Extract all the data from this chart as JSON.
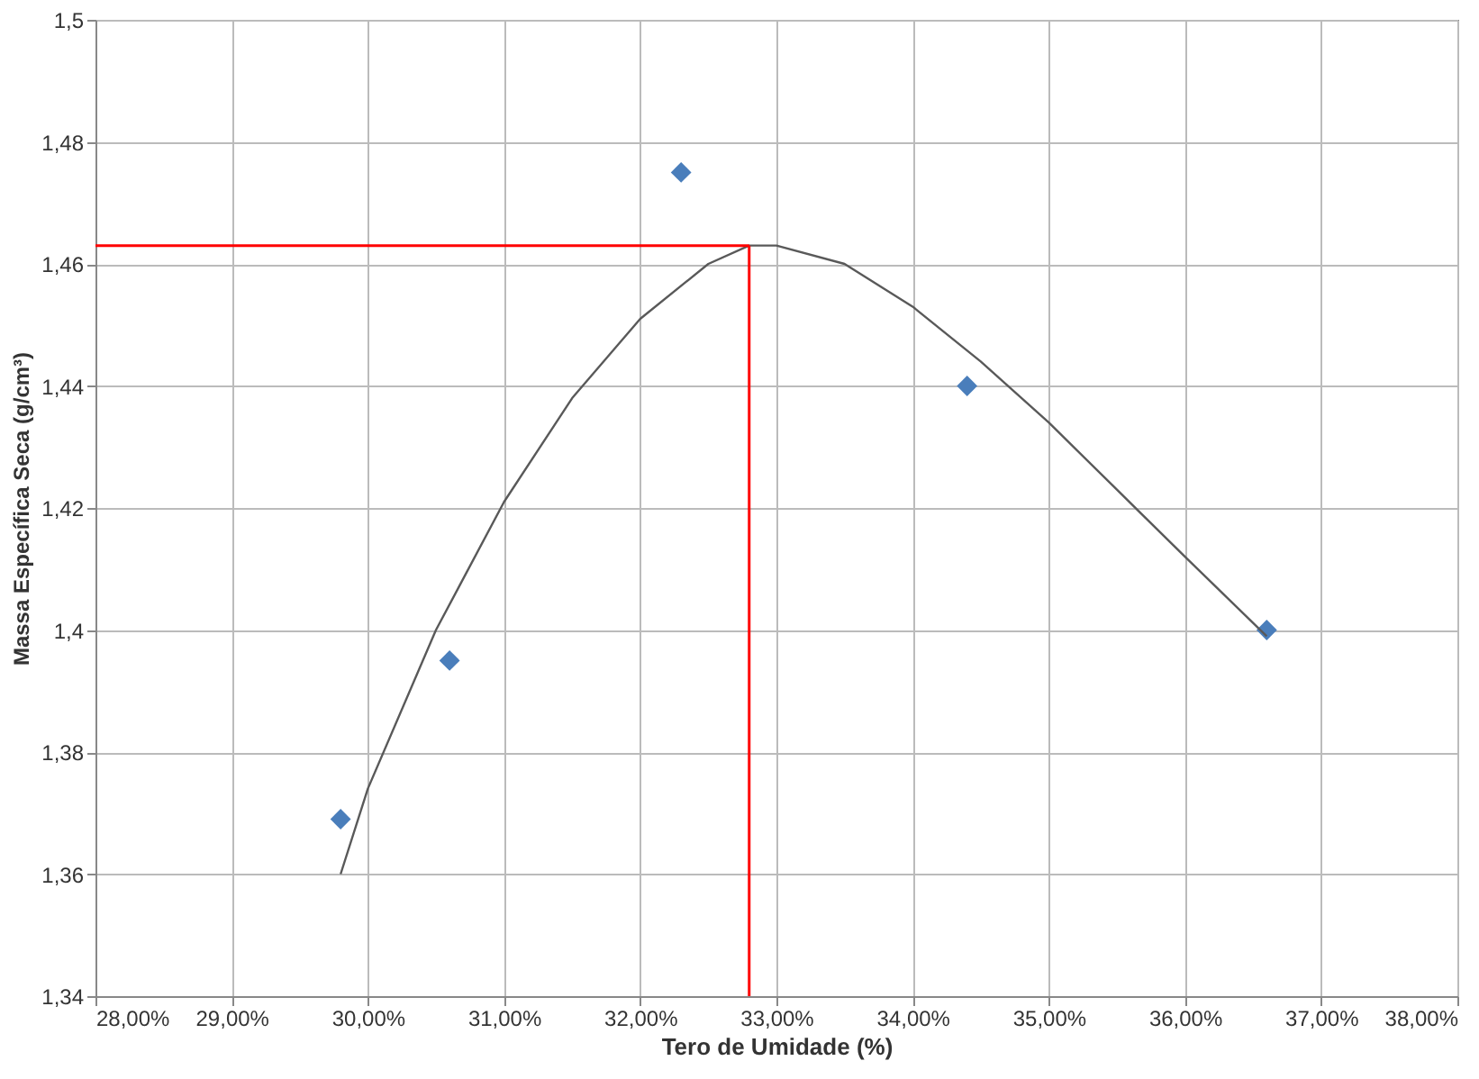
{
  "chart_data": {
    "type": "scatter",
    "xlabel": "Tero de Umidade (%)",
    "ylabel": "Massa Específica Seca (g/cm³)",
    "xlim": [
      28,
      38
    ],
    "ylim": [
      1.34,
      1.5
    ],
    "xticks": [
      {
        "value": 28,
        "label": "28,00%"
      },
      {
        "value": 29,
        "label": "29,00%"
      },
      {
        "value": 30,
        "label": "30,00%"
      },
      {
        "value": 31,
        "label": "31,00%"
      },
      {
        "value": 32,
        "label": "32,00%"
      },
      {
        "value": 33,
        "label": "33,00%"
      },
      {
        "value": 34,
        "label": "34,00%"
      },
      {
        "value": 35,
        "label": "35,00%"
      },
      {
        "value": 36,
        "label": "36,00%"
      },
      {
        "value": 37,
        "label": "37,00%"
      },
      {
        "value": 38,
        "label": "38,00%"
      }
    ],
    "yticks": [
      {
        "value": 1.34,
        "label": "1,34"
      },
      {
        "value": 1.36,
        "label": "1,36"
      },
      {
        "value": 1.38,
        "label": "1,38"
      },
      {
        "value": 1.4,
        "label": "1,4"
      },
      {
        "value": 1.42,
        "label": "1,42"
      },
      {
        "value": 1.44,
        "label": "1,44"
      },
      {
        "value": 1.46,
        "label": "1,46"
      },
      {
        "value": 1.48,
        "label": "1,48"
      },
      {
        "value": 1.5,
        "label": "1,5"
      }
    ],
    "grid": true,
    "series": [
      {
        "marker": "diamond",
        "color": "#4a7ebb",
        "x": [
          29.8,
          30.6,
          32.3,
          34.4,
          36.6
        ],
        "values": [
          1.369,
          1.395,
          1.475,
          1.44,
          1.4
        ]
      },
      {
        "type": "line",
        "marker": "none",
        "line_style": "solid",
        "color": "#595959",
        "x": [
          29.8,
          30.0,
          30.5,
          31.0,
          31.5,
          32.0,
          32.5,
          32.8,
          33.0,
          33.5,
          34.0,
          34.5,
          35.0,
          35.5,
          36.0,
          36.6
        ],
        "values": [
          1.36,
          1.374,
          1.4,
          1.421,
          1.438,
          1.451,
          1.46,
          1.463,
          1.463,
          1.46,
          1.453,
          1.444,
          1.434,
          1.423,
          1.412,
          1.399
        ]
      }
    ],
    "ref_lines": [
      {
        "axis": "x",
        "value": 32.8,
        "color": "#ff0000"
      },
      {
        "axis": "y",
        "value": 1.463,
        "color": "#ff0000"
      }
    ]
  }
}
